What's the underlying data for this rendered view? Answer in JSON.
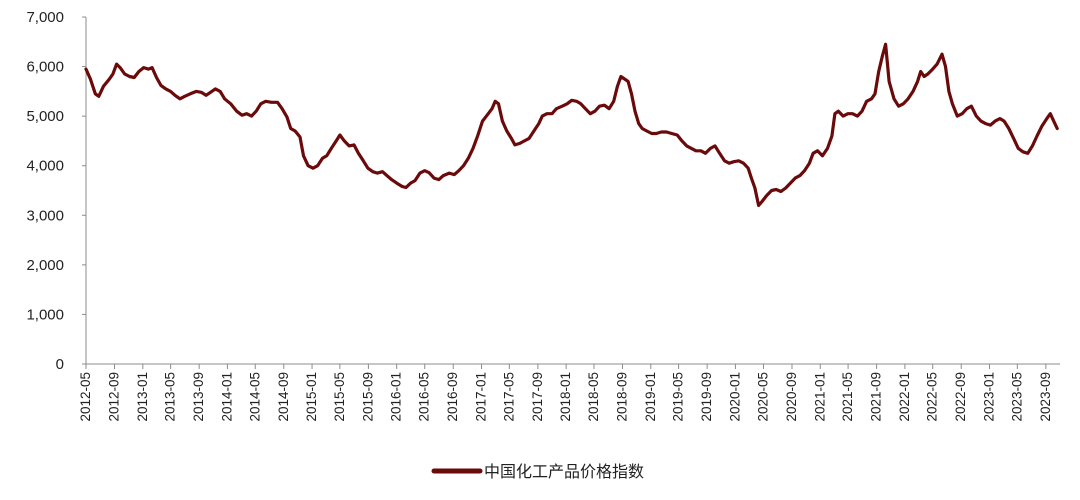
{
  "chart_data": {
    "type": "line",
    "title": "",
    "xlabel": "",
    "ylabel": "",
    "ylim": [
      0,
      7000
    ],
    "yticks": [
      0,
      1000,
      2000,
      3000,
      4000,
      5000,
      6000,
      7000
    ],
    "ytick_labels": [
      "0",
      "1,000",
      "2,000",
      "3,000",
      "4,000",
      "5,000",
      "6,000",
      "7,000"
    ],
    "xrange": [
      "2012-05",
      "2023-11"
    ],
    "xtick_labels": [
      "2012-05",
      "2012-09",
      "2013-01",
      "2013-05",
      "2013-09",
      "2014-01",
      "2014-05",
      "2014-09",
      "2015-01",
      "2015-05",
      "2015-09",
      "2016-01",
      "2016-05",
      "2016-09",
      "2017-01",
      "2017-05",
      "2017-09",
      "2018-01",
      "2018-05",
      "2018-09",
      "2019-01",
      "2019-05",
      "2019-09",
      "2020-01",
      "2020-05",
      "2020-09",
      "2021-01",
      "2021-05",
      "2021-09",
      "2022-01",
      "2022-05",
      "2022-09",
      "2023-01",
      "2023-05",
      "2023-09"
    ],
    "grid": false,
    "legend_position": "bottom-center",
    "series": [
      {
        "name": "中国化工产品价格指数",
        "color": "#6b0a0a",
        "points": [
          [
            "2012-05-01",
            5950
          ],
          [
            "2012-05-20",
            5750
          ],
          [
            "2012-06-10",
            5450
          ],
          [
            "2012-06-25",
            5400
          ],
          [
            "2012-07-15",
            5600
          ],
          [
            "2012-08-10",
            5750
          ],
          [
            "2012-08-25",
            5850
          ],
          [
            "2012-09-10",
            6050
          ],
          [
            "2012-09-25",
            5980
          ],
          [
            "2012-10-15",
            5850
          ],
          [
            "2012-11-05",
            5800
          ],
          [
            "2012-11-25",
            5780
          ],
          [
            "2012-12-15",
            5900
          ],
          [
            "2013-01-05",
            5980
          ],
          [
            "2013-01-25",
            5950
          ],
          [
            "2013-02-10",
            5980
          ],
          [
            "2013-03-01",
            5780
          ],
          [
            "2013-03-20",
            5620
          ],
          [
            "2013-04-10",
            5550
          ],
          [
            "2013-05-01",
            5500
          ],
          [
            "2013-05-20",
            5420
          ],
          [
            "2013-06-10",
            5350
          ],
          [
            "2013-07-01",
            5400
          ],
          [
            "2013-07-25",
            5450
          ],
          [
            "2013-08-20",
            5500
          ],
          [
            "2013-09-10",
            5480
          ],
          [
            "2013-10-01",
            5420
          ],
          [
            "2013-10-20",
            5480
          ],
          [
            "2013-11-10",
            5550
          ],
          [
            "2013-12-01",
            5500
          ],
          [
            "2013-12-20",
            5350
          ],
          [
            "2014-01-15",
            5250
          ],
          [
            "2014-02-10",
            5100
          ],
          [
            "2014-03-05",
            5020
          ],
          [
            "2014-03-25",
            5050
          ],
          [
            "2014-04-15",
            5000
          ],
          [
            "2014-05-05",
            5100
          ],
          [
            "2014-05-25",
            5250
          ],
          [
            "2014-06-15",
            5300
          ],
          [
            "2014-07-10",
            5280
          ],
          [
            "2014-08-05",
            5280
          ],
          [
            "2014-08-25",
            5150
          ],
          [
            "2014-09-15",
            4980
          ],
          [
            "2014-10-01",
            4750
          ],
          [
            "2014-10-20",
            4700
          ],
          [
            "2014-11-10",
            4580
          ],
          [
            "2014-11-25",
            4200
          ],
          [
            "2014-12-15",
            4000
          ],
          [
            "2015-01-05",
            3950
          ],
          [
            "2015-01-25",
            4000
          ],
          [
            "2015-02-15",
            4150
          ],
          [
            "2015-03-05",
            4200
          ],
          [
            "2015-03-25",
            4350
          ],
          [
            "2015-04-15",
            4500
          ],
          [
            "2015-05-01",
            4620
          ],
          [
            "2015-05-20",
            4500
          ],
          [
            "2015-06-10",
            4400
          ],
          [
            "2015-07-01",
            4420
          ],
          [
            "2015-07-20",
            4250
          ],
          [
            "2015-08-10",
            4100
          ],
          [
            "2015-08-30",
            3950
          ],
          [
            "2015-09-20",
            3880
          ],
          [
            "2015-10-10",
            3850
          ],
          [
            "2015-11-01",
            3880
          ],
          [
            "2015-11-20",
            3800
          ],
          [
            "2015-12-10",
            3720
          ],
          [
            "2016-01-01",
            3650
          ],
          [
            "2016-01-25",
            3580
          ],
          [
            "2016-02-10",
            3560
          ],
          [
            "2016-03-01",
            3650
          ],
          [
            "2016-03-20",
            3700
          ],
          [
            "2016-04-10",
            3850
          ],
          [
            "2016-05-01",
            3900
          ],
          [
            "2016-05-20",
            3860
          ],
          [
            "2016-06-10",
            3750
          ],
          [
            "2016-07-01",
            3720
          ],
          [
            "2016-07-20",
            3800
          ],
          [
            "2016-08-15",
            3850
          ],
          [
            "2016-09-05",
            3820
          ],
          [
            "2016-09-25",
            3900
          ],
          [
            "2016-10-15",
            4000
          ],
          [
            "2016-11-05",
            4150
          ],
          [
            "2016-11-25",
            4350
          ],
          [
            "2016-12-15",
            4600
          ],
          [
            "2017-01-05",
            4900
          ],
          [
            "2017-01-25",
            5020
          ],
          [
            "2017-02-15",
            5150
          ],
          [
            "2017-03-01",
            5300
          ],
          [
            "2017-03-15",
            5250
          ],
          [
            "2017-04-01",
            4900
          ],
          [
            "2017-04-20",
            4700
          ],
          [
            "2017-05-10",
            4550
          ],
          [
            "2017-05-25",
            4420
          ],
          [
            "2017-06-15",
            4450
          ],
          [
            "2017-07-05",
            4500
          ],
          [
            "2017-07-25",
            4550
          ],
          [
            "2017-08-15",
            4700
          ],
          [
            "2017-09-05",
            4850
          ],
          [
            "2017-09-20",
            5000
          ],
          [
            "2017-10-10",
            5050
          ],
          [
            "2017-11-01",
            5050
          ],
          [
            "2017-11-20",
            5150
          ],
          [
            "2017-12-15",
            5200
          ],
          [
            "2018-01-05",
            5250
          ],
          [
            "2018-01-25",
            5320
          ],
          [
            "2018-02-15",
            5300
          ],
          [
            "2018-03-05",
            5250
          ],
          [
            "2018-03-25",
            5150
          ],
          [
            "2018-04-15",
            5050
          ],
          [
            "2018-05-05",
            5100
          ],
          [
            "2018-05-25",
            5200
          ],
          [
            "2018-06-15",
            5220
          ],
          [
            "2018-07-05",
            5150
          ],
          [
            "2018-07-25",
            5300
          ],
          [
            "2018-08-10",
            5600
          ],
          [
            "2018-08-25",
            5800
          ],
          [
            "2018-09-10",
            5750
          ],
          [
            "2018-09-25",
            5700
          ],
          [
            "2018-10-10",
            5450
          ],
          [
            "2018-10-25",
            5100
          ],
          [
            "2018-11-10",
            4850
          ],
          [
            "2018-11-25",
            4750
          ],
          [
            "2018-12-15",
            4700
          ],
          [
            "2019-01-05",
            4650
          ],
          [
            "2019-01-25",
            4650
          ],
          [
            "2019-02-15",
            4680
          ],
          [
            "2019-03-10",
            4680
          ],
          [
            "2019-04-01",
            4650
          ],
          [
            "2019-04-25",
            4620
          ],
          [
            "2019-05-15",
            4500
          ],
          [
            "2019-06-05",
            4400
          ],
          [
            "2019-06-25",
            4350
          ],
          [
            "2019-07-15",
            4300
          ],
          [
            "2019-08-05",
            4300
          ],
          [
            "2019-08-25",
            4250
          ],
          [
            "2019-09-15",
            4350
          ],
          [
            "2019-10-05",
            4400
          ],
          [
            "2019-10-25",
            4250
          ],
          [
            "2019-11-15",
            4100
          ],
          [
            "2019-12-05",
            4050
          ],
          [
            "2019-12-25",
            4080
          ],
          [
            "2020-01-15",
            4100
          ],
          [
            "2020-02-05",
            4050
          ],
          [
            "2020-02-25",
            3950
          ],
          [
            "2020-03-10",
            3750
          ],
          [
            "2020-03-25",
            3550
          ],
          [
            "2020-04-10",
            3200
          ],
          [
            "2020-04-25",
            3280
          ],
          [
            "2020-05-15",
            3400
          ],
          [
            "2020-06-05",
            3500
          ],
          [
            "2020-06-25",
            3520
          ],
          [
            "2020-07-15",
            3480
          ],
          [
            "2020-08-05",
            3550
          ],
          [
            "2020-08-25",
            3650
          ],
          [
            "2020-09-15",
            3750
          ],
          [
            "2020-10-05",
            3800
          ],
          [
            "2020-10-25",
            3900
          ],
          [
            "2020-11-15",
            4050
          ],
          [
            "2020-12-01",
            4250
          ],
          [
            "2020-12-20",
            4300
          ],
          [
            "2021-01-10",
            4200
          ],
          [
            "2021-02-01",
            4350
          ],
          [
            "2021-02-20",
            4600
          ],
          [
            "2021-03-05",
            5050
          ],
          [
            "2021-03-20",
            5100
          ],
          [
            "2021-04-10",
            5000
          ],
          [
            "2021-04-30",
            5050
          ],
          [
            "2021-05-20",
            5050
          ],
          [
            "2021-06-10",
            5000
          ],
          [
            "2021-06-30",
            5100
          ],
          [
            "2021-07-20",
            5300
          ],
          [
            "2021-08-10",
            5350
          ],
          [
            "2021-08-25",
            5450
          ],
          [
            "2021-09-10",
            5900
          ],
          [
            "2021-09-25",
            6200
          ],
          [
            "2021-10-10",
            6450
          ],
          [
            "2021-10-25",
            5700
          ],
          [
            "2021-11-15",
            5350
          ],
          [
            "2021-12-05",
            5200
          ],
          [
            "2021-12-25",
            5250
          ],
          [
            "2022-01-15",
            5350
          ],
          [
            "2022-02-05",
            5500
          ],
          [
            "2022-02-25",
            5700
          ],
          [
            "2022-03-10",
            5900
          ],
          [
            "2022-03-25",
            5800
          ],
          [
            "2022-04-10",
            5850
          ],
          [
            "2022-05-01",
            5950
          ],
          [
            "2022-05-20",
            6050
          ],
          [
            "2022-06-10",
            6250
          ],
          [
            "2022-06-25",
            6000
          ],
          [
            "2022-07-10",
            5500
          ],
          [
            "2022-07-25",
            5250
          ],
          [
            "2022-08-15",
            5000
          ],
          [
            "2022-09-05",
            5050
          ],
          [
            "2022-09-25",
            5150
          ],
          [
            "2022-10-15",
            5200
          ],
          [
            "2022-11-05",
            5000
          ],
          [
            "2022-11-25",
            4900
          ],
          [
            "2022-12-15",
            4850
          ],
          [
            "2023-01-05",
            4820
          ],
          [
            "2023-01-25",
            4900
          ],
          [
            "2023-02-15",
            4950
          ],
          [
            "2023-03-05",
            4900
          ],
          [
            "2023-03-25",
            4750
          ],
          [
            "2023-04-15",
            4550
          ],
          [
            "2023-05-05",
            4350
          ],
          [
            "2023-05-25",
            4280
          ],
          [
            "2023-06-15",
            4250
          ],
          [
            "2023-07-05",
            4400
          ],
          [
            "2023-07-25",
            4600
          ],
          [
            "2023-08-15",
            4800
          ],
          [
            "2023-09-05",
            4950
          ],
          [
            "2023-09-20",
            5050
          ],
          [
            "2023-10-05",
            4900
          ],
          [
            "2023-10-20",
            4750
          ]
        ]
      }
    ]
  },
  "legend": {
    "label": "中国化工产品价格指数",
    "color": "#6b0a0a"
  }
}
